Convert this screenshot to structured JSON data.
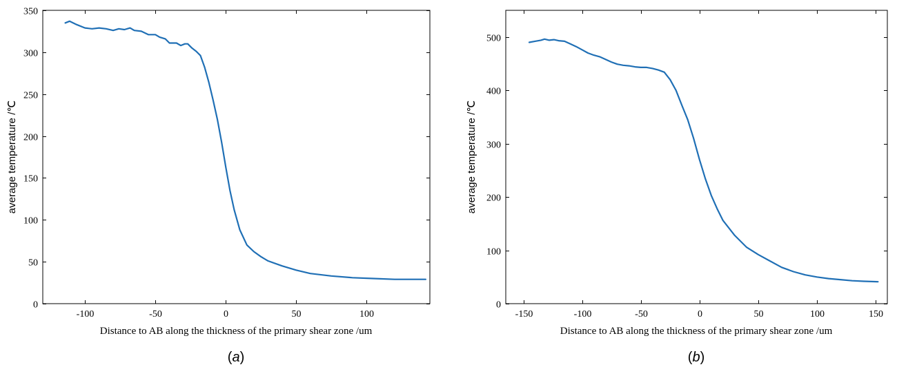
{
  "chart_data": [
    {
      "type": "line",
      "caption_open": "(",
      "caption_letter": "a",
      "caption_close": ")",
      "xlabel": "Distance to AB along the thickness of the primary shear zone /um",
      "ylabel": "average temperature /℃",
      "xlim": [
        -130,
        145
      ],
      "ylim": [
        0,
        350
      ],
      "xticks": [
        -100,
        -50,
        0,
        50,
        100
      ],
      "yticks": [
        0,
        50,
        100,
        150,
        200,
        250,
        300,
        350
      ],
      "grid": false,
      "color": "#1f6fb5",
      "series": [
        {
          "x": [
            -114,
            -111,
            -106,
            -100,
            -95,
            -90,
            -85,
            -80,
            -76,
            -72,
            -68,
            -65,
            -60,
            -55,
            -50,
            -47,
            -43,
            -40,
            -35,
            -32,
            -29,
            -27,
            -24,
            -21,
            -18,
            -15,
            -12,
            -9,
            -6,
            -3,
            0,
            3,
            6,
            10,
            15,
            20,
            25,
            30,
            40,
            50,
            60,
            75,
            90,
            105,
            120,
            135,
            142
          ],
          "y": [
            335,
            337,
            333,
            329,
            328,
            329,
            328,
            326,
            328,
            327,
            329,
            326,
            325,
            321,
            321,
            318,
            316,
            311,
            311,
            308,
            310,
            310,
            305,
            301,
            296,
            282,
            264,
            243,
            220,
            193,
            163,
            135,
            112,
            88,
            70,
            62,
            56,
            51,
            45,
            40,
            36,
            33,
            31,
            30,
            29,
            29,
            29
          ]
        }
      ]
    },
    {
      "type": "line",
      "caption_open": "(",
      "caption_letter": "b",
      "caption_close": ")",
      "xlabel": "Distance to AB along the thickness of the primary shear zone /um",
      "ylabel": "average temperature /℃",
      "xlim": [
        -165,
        160
      ],
      "ylim": [
        0,
        550
      ],
      "xticks": [
        -150,
        -100,
        -50,
        0,
        50,
        100,
        150
      ],
      "yticks": [
        0,
        100,
        200,
        300,
        400,
        500
      ],
      "grid": false,
      "color": "#1f6fb5",
      "series": [
        {
          "x": [
            -145,
            -140,
            -135,
            -132,
            -128,
            -124,
            -120,
            -115,
            -110,
            -105,
            -100,
            -95,
            -90,
            -85,
            -80,
            -75,
            -70,
            -65,
            -60,
            -55,
            -50,
            -45,
            -40,
            -35,
            -30,
            -25,
            -20,
            -15,
            -10,
            -5,
            0,
            5,
            10,
            15,
            20,
            30,
            40,
            50,
            60,
            70,
            80,
            90,
            100,
            110,
            120,
            130,
            140,
            152
          ],
          "y": [
            490,
            492,
            494,
            496,
            494,
            495,
            493,
            492,
            487,
            482,
            476,
            470,
            466,
            463,
            458,
            453,
            449,
            447,
            446,
            444,
            443,
            443,
            441,
            438,
            434,
            420,
            400,
            372,
            345,
            310,
            270,
            234,
            203,
            178,
            156,
            128,
            106,
            92,
            80,
            68,
            60,
            54,
            50,
            47,
            45,
            43,
            42,
            41
          ]
        }
      ]
    }
  ]
}
